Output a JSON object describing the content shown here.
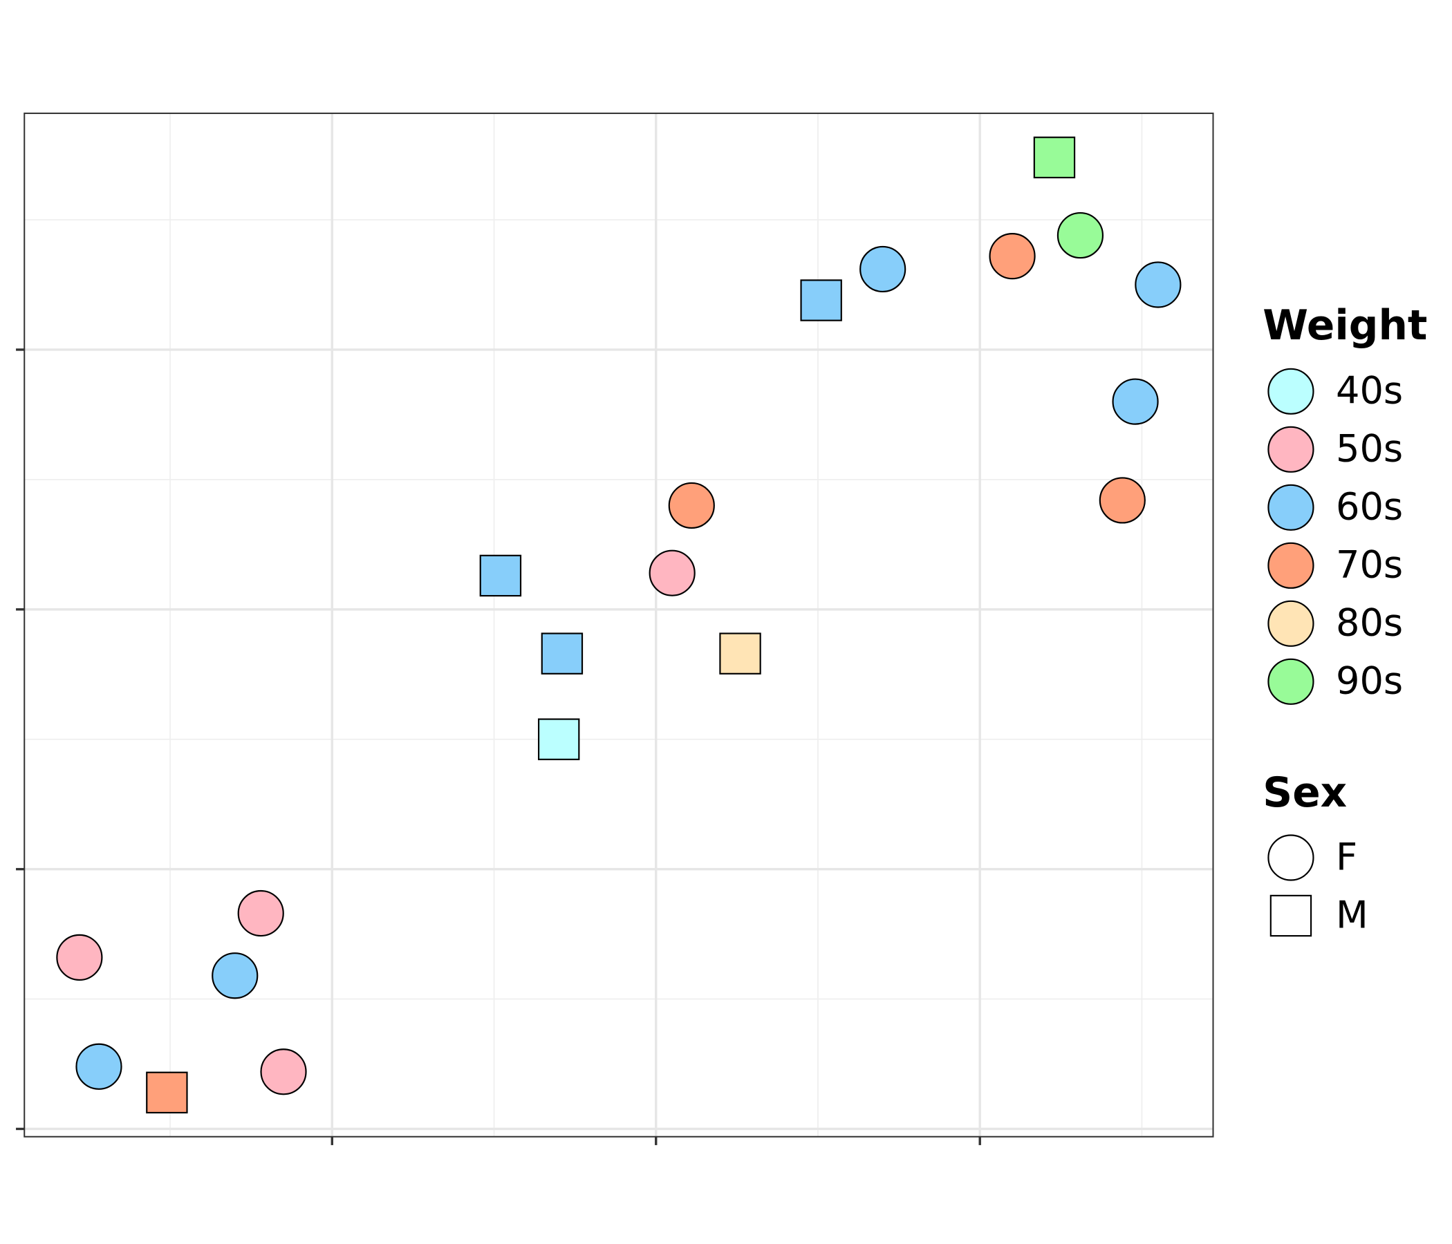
{
  "chart_data": {
    "type": "scatter",
    "x": [
      -1.78,
      -1.22,
      -1.3,
      -1.72,
      -1.15,
      0.11,
      0.05,
      0.7,
      1.1,
      1.31,
      1.55,
      1.48,
      1.44,
      -1.51,
      -0.48,
      -0.29,
      -0.3,
      0.26,
      0.51,
      1.23
    ],
    "y": [
      -1.34,
      -1.17,
      -1.41,
      -1.76,
      -1.78,
      0.4,
      0.14,
      1.31,
      1.36,
      1.44,
      1.25,
      0.8,
      0.42,
      -1.86,
      0.13,
      -0.17,
      -0.5,
      -0.17,
      1.19,
      1.74
    ],
    "weight": [
      "50s",
      "50s",
      "60s",
      "60s",
      "50s",
      "70s",
      "50s",
      "60s",
      "70s",
      "90s",
      "60s",
      "60s",
      "70s",
      "70s",
      "60s",
      "60s",
      "40s",
      "80s",
      "60s",
      "90s"
    ],
    "sex": [
      "F",
      "F",
      "F",
      "F",
      "F",
      "F",
      "F",
      "F",
      "F",
      "F",
      "F",
      "F",
      "F",
      "M",
      "M",
      "M",
      "M",
      "M",
      "M",
      "M"
    ],
    "color_legend": {
      "title": "Weight",
      "levels": [
        "40s",
        "50s",
        "60s",
        "70s",
        "80s",
        "90s"
      ],
      "colors": [
        "#bbffff",
        "#ffb6c1",
        "#87cefa",
        "#ffa07a",
        "#ffe4b5",
        "#98fb98"
      ]
    },
    "shape_legend": {
      "title": "Sex",
      "levels": [
        "F",
        "M"
      ],
      "shapes": [
        "circle",
        "square"
      ]
    },
    "xlim": [
      -1.95,
      1.72
    ],
    "ylim": [
      -2.03,
      1.91
    ],
    "xticks": [
      -1,
      0,
      1
    ],
    "yticks": [
      -2,
      -1,
      0,
      1
    ],
    "xminor": [
      -1.5,
      -0.5,
      0.5,
      1.5
    ],
    "yminor": [
      -1.5,
      -0.5,
      0.5,
      1.5
    ],
    "grid": true
  }
}
